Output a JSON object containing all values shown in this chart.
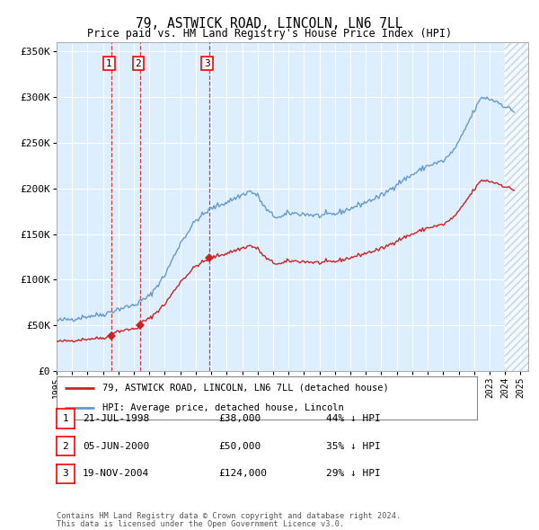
{
  "title": "79, ASTWICK ROAD, LINCOLN, LN6 7LL",
  "subtitle": "Price paid vs. HM Land Registry's House Price Index (HPI)",
  "legend_line1": "79, ASTWICK ROAD, LINCOLN, LN6 7LL (detached house)",
  "legend_line2": "HPI: Average price, detached house, Lincoln",
  "transactions": [
    {
      "num": 1,
      "date": "21-JUL-1998",
      "price": 38000,
      "pct": "44% ↓ HPI",
      "date_x": 1998.55
    },
    {
      "num": 2,
      "date": "05-JUN-2000",
      "price": 50000,
      "pct": "35% ↓ HPI",
      "date_x": 2000.43
    },
    {
      "num": 3,
      "date": "19-NOV-2004",
      "price": 124000,
      "pct": "29% ↓ HPI",
      "date_x": 2004.88
    }
  ],
  "footnote1": "Contains HM Land Registry data © Crown copyright and database right 2024.",
  "footnote2": "This data is licensed under the Open Government Licence v3.0.",
  "hpi_color": "#6699cc",
  "price_color": "#cc2222",
  "bg_color": "#ddeeff",
  "hatch_color": "#aabbcc",
  "ylim": [
    0,
    360000
  ],
  "yticks": [
    0,
    50000,
    100000,
    150000,
    200000,
    250000,
    300000,
    350000
  ],
  "xlim_start": 1995.0,
  "xlim_end": 2025.5,
  "hpi_anchors": [
    [
      1995.0,
      55000
    ],
    [
      1996.0,
      57000
    ],
    [
      1997.0,
      60000
    ],
    [
      1998.0,
      62000
    ],
    [
      1999.0,
      68000
    ],
    [
      2000.0,
      72000
    ],
    [
      2001.0,
      82000
    ],
    [
      2002.0,
      105000
    ],
    [
      2003.0,
      140000
    ],
    [
      2004.0,
      165000
    ],
    [
      2005.0,
      178000
    ],
    [
      2006.0,
      185000
    ],
    [
      2007.0,
      193000
    ],
    [
      2007.5,
      197000
    ],
    [
      2008.0,
      192000
    ],
    [
      2008.5,
      178000
    ],
    [
      2009.0,
      170000
    ],
    [
      2009.5,
      168000
    ],
    [
      2010.0,
      173000
    ],
    [
      2011.0,
      172000
    ],
    [
      2012.0,
      170000
    ],
    [
      2013.0,
      172000
    ],
    [
      2014.0,
      178000
    ],
    [
      2015.0,
      185000
    ],
    [
      2016.0,
      192000
    ],
    [
      2016.5,
      198000
    ],
    [
      2017.0,
      205000
    ],
    [
      2018.0,
      215000
    ],
    [
      2019.0,
      225000
    ],
    [
      2020.0,
      230000
    ],
    [
      2020.5,
      238000
    ],
    [
      2021.0,
      250000
    ],
    [
      2021.5,
      268000
    ],
    [
      2022.0,
      285000
    ],
    [
      2022.5,
      300000
    ],
    [
      2023.0,
      298000
    ],
    [
      2023.5,
      295000
    ],
    [
      2024.0,
      290000
    ],
    [
      2024.5,
      285000
    ]
  ],
  "noise_seed": 42,
  "noise_std": 1500,
  "t1": 1998.55,
  "t2": 2000.43,
  "t3": 2004.88,
  "p1": 38000,
  "p2": 50000,
  "p3": 124000
}
